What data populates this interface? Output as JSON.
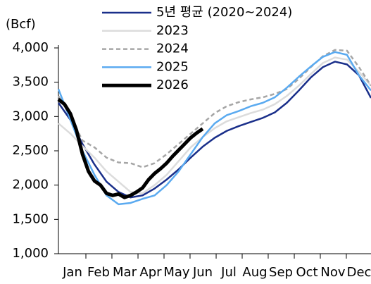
{
  "chart_data": {
    "type": "line",
    "unit_label": "(Bcf)",
    "xlim": [
      0,
      52
    ],
    "xticks": [
      {
        "value": 0,
        "label": "Jan"
      },
      {
        "value": 4.33,
        "label": "Feb"
      },
      {
        "value": 8.67,
        "label": "Mar"
      },
      {
        "value": 13,
        "label": "Apr"
      },
      {
        "value": 17.33,
        "label": "May"
      },
      {
        "value": 21.67,
        "label": "Jun"
      },
      {
        "value": 26,
        "label": "Jul"
      },
      {
        "value": 30.33,
        "label": "Aug"
      },
      {
        "value": 34.67,
        "label": "Sep"
      },
      {
        "value": 39,
        "label": "Oct"
      },
      {
        "value": 43.33,
        "label": "Nov"
      },
      {
        "value": 47.67,
        "label": "Dec"
      }
    ],
    "ylim": [
      1000,
      4000
    ],
    "yticks": [
      {
        "value": 1000,
        "label": "1,000"
      },
      {
        "value": 1500,
        "label": "1,500"
      },
      {
        "value": 2000,
        "label": "2,000"
      },
      {
        "value": 2500,
        "label": "2,500"
      },
      {
        "value": 3000,
        "label": "3,000"
      },
      {
        "value": 3500,
        "label": "3,500"
      },
      {
        "value": 4000,
        "label": "4,000"
      }
    ],
    "x": [
      0,
      2,
      4,
      6,
      8,
      10,
      12,
      14,
      16,
      18,
      20,
      22,
      24,
      26,
      28,
      30,
      32,
      34,
      36,
      38,
      40,
      42,
      44,
      46,
      48,
      50,
      52
    ],
    "series": [
      {
        "name": "5년 평균 (2020~2024)",
        "color": "#1a2f8a",
        "width": 2.5,
        "dash": false,
        "values": [
          3200,
          2950,
          2600,
          2300,
          2050,
          1900,
          1820,
          1850,
          1950,
          2080,
          2230,
          2400,
          2560,
          2690,
          2790,
          2860,
          2920,
          2980,
          3060,
          3200,
          3380,
          3570,
          3720,
          3800,
          3760,
          3600,
          3270
        ]
      },
      {
        "name": "2023",
        "color": "#dcdcdc",
        "width": 2.5,
        "dash": false,
        "values": [
          2900,
          2750,
          2570,
          2400,
          2200,
          2050,
          1900,
          1880,
          2000,
          2150,
          2350,
          2550,
          2700,
          2830,
          2930,
          2990,
          3050,
          3100,
          3180,
          3300,
          3450,
          3620,
          3780,
          3860,
          3830,
          3650,
          3450
        ]
      },
      {
        "name": "2024",
        "color": "#a6a6a6",
        "width": 2.5,
        "dash": true,
        "values": [
          3300,
          3000,
          2650,
          2550,
          2400,
          2330,
          2320,
          2260,
          2320,
          2450,
          2600,
          2750,
          2900,
          3050,
          3150,
          3210,
          3250,
          3280,
          3330,
          3400,
          3550,
          3720,
          3880,
          3970,
          3960,
          3720,
          3450
        ]
      },
      {
        "name": "2025",
        "color": "#5aaaf0",
        "width": 2.5,
        "dash": false,
        "values": [
          3400,
          2950,
          2500,
          2150,
          1850,
          1720,
          1740,
          1800,
          1850,
          2000,
          2200,
          2450,
          2700,
          2900,
          3020,
          3080,
          3150,
          3200,
          3280,
          3420,
          3580,
          3730,
          3870,
          3940,
          3900,
          3600,
          3380
        ]
      },
      {
        "name": "2026",
        "color": "#000000",
        "width": 5,
        "dash": false,
        "x": [
          0,
          1,
          2,
          3,
          4,
          5,
          6,
          7,
          8,
          9,
          10,
          11,
          12,
          13,
          14,
          15,
          16,
          17,
          18,
          19,
          20,
          21,
          22,
          23,
          24
        ],
        "values": [
          3250,
          3180,
          3040,
          2800,
          2450,
          2200,
          2060,
          2000,
          1880,
          1850,
          1870,
          1820,
          1850,
          1900,
          1960,
          2080,
          2170,
          2240,
          2320,
          2420,
          2510,
          2600,
          2690,
          2760,
          2820
        ]
      }
    ]
  }
}
